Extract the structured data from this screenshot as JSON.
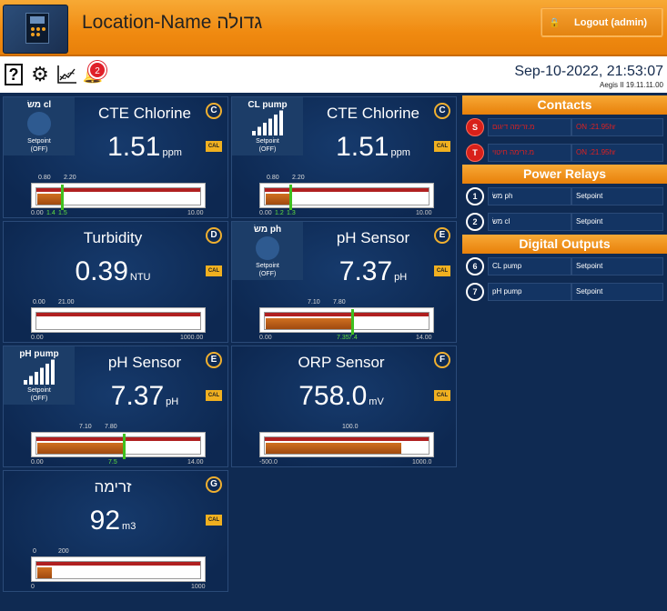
{
  "header": {
    "title": "Location-Name גדולה",
    "logout_label": "Logout (admin)",
    "accent": "#f08a10"
  },
  "toolbar": {
    "help_glyph": "?",
    "notifications_count": "2",
    "datetime": "Sep-10-2022, 21:53:07",
    "version": "Aegis II 19.11.11.00"
  },
  "tiles": [
    {
      "id": "cte-chlorine-1",
      "name": "CTE Chlorine",
      "value": "1.51",
      "unit": "ppm",
      "letter": "C",
      "cal": "CAL",
      "side": {
        "name": "משׂ cl",
        "icon": "circle",
        "setpoint": "Setpoint",
        "state": "(OFF)"
      },
      "gauge": {
        "min_label": "0.00",
        "max_label": "10.00",
        "low_label": "0.80",
        "high_label": "2.20",
        "markers": [
          "1.4",
          "1.5"
        ],
        "level_fraction": 0.151
      }
    },
    {
      "id": "cte-chlorine-2",
      "name": "CTE Chlorine",
      "value": "1.51",
      "unit": "ppm",
      "letter": "C",
      "cal": "CAL",
      "side": {
        "name": "CL pump",
        "icon": "signal-bars",
        "setpoint": "Setpoint",
        "state": "(OFF)"
      },
      "gauge": {
        "min_label": "0.00",
        "max_label": "10.00",
        "low_label": "0.80",
        "high_label": "2.20",
        "markers": [
          "1.2",
          "1.3"
        ],
        "level_fraction": 0.151
      }
    },
    {
      "id": "turbidity",
      "name": "Turbidity",
      "value": "0.39",
      "unit": "NTU",
      "letter": "D",
      "cal": "CAL",
      "gauge": {
        "min_label": "0.00",
        "max_label": "1000.00",
        "low_label": "0.00",
        "high_label": "21.00",
        "markers": [],
        "level_fraction": 0.0
      }
    },
    {
      "id": "ph-sensor-1",
      "name": "pH Sensor",
      "value": "7.37",
      "unit": "pH",
      "letter": "E",
      "cal": "CAL",
      "side": {
        "name": "משׂ ph",
        "icon": "circle",
        "setpoint": "Setpoint",
        "state": "(OFF)"
      },
      "gauge": {
        "min_label": "0.00",
        "max_label": "14.00",
        "low_label": "7.10",
        "high_label": "7.80",
        "markers": [
          "7.35",
          "7.4"
        ],
        "level_fraction": 0.526
      }
    },
    {
      "id": "ph-sensor-2",
      "name": "pH Sensor",
      "value": "7.37",
      "unit": "pH",
      "letter": "E",
      "cal": "CAL",
      "side": {
        "name": "pH pump",
        "icon": "signal-bars",
        "setpoint": "Setpoint",
        "state": "(OFF)"
      },
      "gauge": {
        "min_label": "0.00",
        "max_label": "14.00",
        "low_label": "7.10",
        "high_label": "7.80",
        "markers": [
          "7.5"
        ],
        "level_fraction": 0.526
      }
    },
    {
      "id": "orp-sensor",
      "name": "ORP Sensor",
      "value": "758.0",
      "unit": "mV",
      "letter": "F",
      "cal": "CAL",
      "gauge": {
        "min_label": "-500.0",
        "max_label": "1000.0",
        "low_label": "100.0",
        "high_label": "",
        "markers": [],
        "level_fraction": 0.839
      }
    },
    {
      "id": "zrima",
      "name": "זרימה",
      "value": "92",
      "unit": "m3",
      "letter": "G",
      "cal": "CAL",
      "gauge": {
        "min_label": "0",
        "max_label": "1000",
        "low_label": "0",
        "high_label": "200",
        "markers": [],
        "level_fraction": 0.092
      }
    }
  ],
  "right_panel": {
    "contacts": {
      "title": "Contacts",
      "rows": [
        {
          "badge": "S",
          "name": "מ.זרימה דיגום",
          "value": "ON :21.95hr"
        },
        {
          "badge": "T",
          "name": "מ.זרימה חיטוי",
          "value": "ON :21.95hr"
        }
      ]
    },
    "power_relays": {
      "title": "Power Relays",
      "rows": [
        {
          "badge": "1",
          "name": "משׂ ph",
          "value": "Setpoint"
        },
        {
          "badge": "2",
          "name": "משׂ cl",
          "value": "Setpoint"
        }
      ]
    },
    "digital_outputs": {
      "title": "Digital Outputs",
      "rows": [
        {
          "badge": "6",
          "name": "CL pump",
          "value": "Setpoint"
        },
        {
          "badge": "7",
          "name": "pH pump",
          "value": "Setpoint"
        }
      ]
    }
  }
}
